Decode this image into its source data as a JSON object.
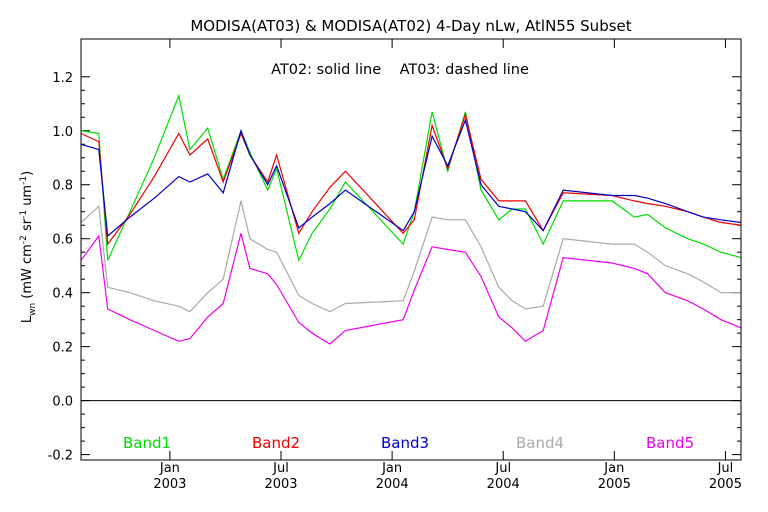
{
  "chart_data": {
    "type": "line",
    "title": "MODISA(AT03) & MODISA(AT02) 4-Day nLw, AtlN55 Subset",
    "annotation": "AT02: solid line    AT03: dashed line",
    "ylabel_main": "L",
    "ylabel_sub": "wn",
    "ylabel_units": "(mW cm",
    "ylabel_units_exp1": "-2",
    "ylabel_units_mid": " sr",
    "ylabel_units_exp2": "-1",
    "ylabel_units_mid2": " um",
    "ylabel_units_exp3": "-1",
    "ylabel_units_end": ")",
    "xlim": [
      2002.6,
      2005.57
    ],
    "ylim": [
      -0.22,
      1.34
    ],
    "yticks": [
      -0.2,
      0.0,
      0.2,
      0.4,
      0.6,
      0.8,
      1.0,
      1.2
    ],
    "ytick_labels": [
      "-0.2",
      "0.0",
      "0.2",
      "0.4",
      "0.6",
      "0.8",
      "1.0",
      "1.2"
    ],
    "xticks": [
      {
        "x": 2003.0,
        "month": "Jan",
        "year": "2003"
      },
      {
        "x": 2003.5,
        "month": "Jul",
        "year": "2003"
      },
      {
        "x": 2004.0,
        "month": "Jan",
        "year": "2004"
      },
      {
        "x": 2004.5,
        "month": "Jul",
        "year": "2004"
      },
      {
        "x": 2005.0,
        "month": "Jan",
        "year": "2005"
      },
      {
        "x": 2005.5,
        "month": "Jul",
        "year": "2005"
      }
    ],
    "zero_line": 0.0,
    "x": [
      2002.6,
      2002.68,
      2002.72,
      2002.82,
      2002.93,
      2003.04,
      2003.09,
      2003.17,
      2003.24,
      2003.32,
      2003.36,
      2003.44,
      2003.48,
      2003.58,
      2003.64,
      2003.72,
      2003.79,
      2004.05,
      2004.1,
      2004.18,
      2004.25,
      2004.33,
      2004.4,
      2004.48,
      2004.54,
      2004.6,
      2004.68,
      2004.77,
      2004.99,
      2005.09,
      2005.15,
      2005.23,
      2005.33,
      2005.4,
      2005.48,
      2005.57
    ],
    "series": [
      {
        "name": "Band1",
        "color": "#00dd00",
        "values": [
          1.0,
          0.99,
          0.52,
          0.7,
          0.9,
          1.13,
          0.93,
          1.01,
          0.82,
          1.0,
          0.92,
          0.78,
          0.86,
          0.52,
          0.62,
          0.71,
          0.81,
          0.58,
          0.7,
          1.07,
          0.85,
          1.07,
          0.78,
          0.67,
          0.71,
          0.71,
          0.58,
          0.74,
          0.74,
          0.68,
          0.69,
          0.64,
          0.6,
          0.58,
          0.55,
          0.53
        ]
      },
      {
        "name": "Band2",
        "color": "#ee0000",
        "values": [
          0.99,
          0.96,
          0.58,
          0.69,
          0.83,
          0.99,
          0.91,
          0.97,
          0.81,
          0.99,
          0.91,
          0.81,
          0.91,
          0.62,
          0.7,
          0.79,
          0.85,
          0.62,
          0.67,
          1.02,
          0.86,
          1.06,
          0.82,
          0.74,
          0.74,
          0.74,
          0.63,
          0.77,
          0.76,
          0.74,
          0.73,
          0.72,
          0.7,
          0.68,
          0.66,
          0.65
        ]
      },
      {
        "name": "Band3",
        "color": "#0000cc",
        "values": [
          0.95,
          0.93,
          0.61,
          0.68,
          0.75,
          0.83,
          0.81,
          0.84,
          0.77,
          1.0,
          0.91,
          0.8,
          0.87,
          0.64,
          0.68,
          0.73,
          0.78,
          0.63,
          0.7,
          0.98,
          0.87,
          1.04,
          0.8,
          0.72,
          0.71,
          0.7,
          0.63,
          0.78,
          0.76,
          0.76,
          0.75,
          0.73,
          0.7,
          0.68,
          0.67,
          0.66
        ]
      },
      {
        "name": "Band4",
        "color": "#aaaaaa",
        "values": [
          0.66,
          0.72,
          0.42,
          0.4,
          0.37,
          0.35,
          0.33,
          0.4,
          0.45,
          0.74,
          0.6,
          0.56,
          0.55,
          0.39,
          0.36,
          0.33,
          0.36,
          0.37,
          0.48,
          0.68,
          0.67,
          0.67,
          0.57,
          0.42,
          0.37,
          0.34,
          0.35,
          0.6,
          0.58,
          0.58,
          0.55,
          0.5,
          0.47,
          0.44,
          0.4,
          0.4
        ]
      },
      {
        "name": "Band5",
        "color": "#ee00ee",
        "values": [
          0.52,
          0.61,
          0.34,
          0.3,
          0.26,
          0.22,
          0.23,
          0.31,
          0.36,
          0.62,
          0.49,
          0.47,
          0.43,
          0.29,
          0.25,
          0.21,
          0.26,
          0.3,
          0.41,
          0.57,
          0.56,
          0.55,
          0.46,
          0.31,
          0.27,
          0.22,
          0.26,
          0.53,
          0.51,
          0.49,
          0.47,
          0.4,
          0.37,
          0.34,
          0.3,
          0.27
        ]
      }
    ],
    "legend": [
      {
        "label": "Band1",
        "color": "#00dd00"
      },
      {
        "label": "Band2",
        "color": "#ee0000"
      },
      {
        "label": "Band3",
        "color": "#0000cc"
      },
      {
        "label": "Band4",
        "color": "#aaaaaa"
      },
      {
        "label": "Band5",
        "color": "#ee00ee"
      }
    ],
    "grid": false,
    "legend_placement": "bottom-inside"
  }
}
